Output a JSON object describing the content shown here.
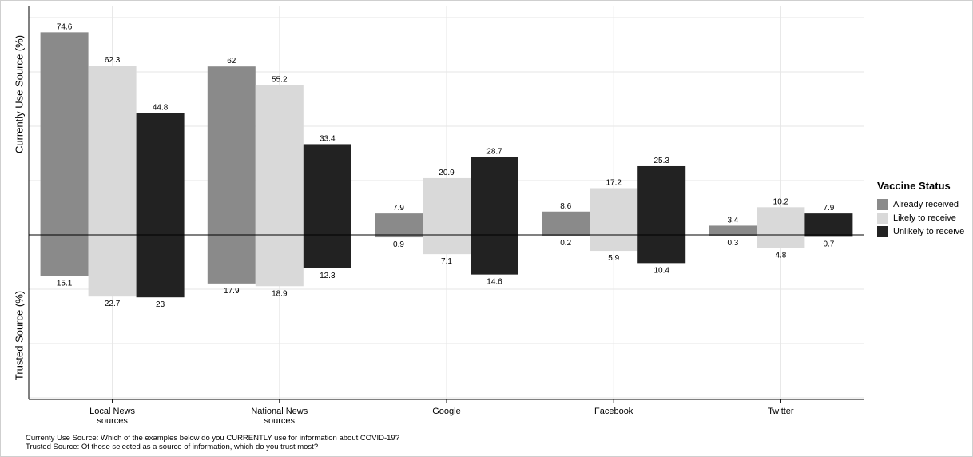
{
  "chart_data": {
    "type": "bar",
    "categories": [
      "Local News sources",
      "National News sources",
      "Google",
      "Facebook",
      "Twitter"
    ],
    "category_labels": [
      [
        "Local News",
        "sources"
      ],
      [
        "National News",
        "sources"
      ],
      [
        "Google"
      ],
      [
        "Facebook"
      ],
      [
        "Twitter"
      ]
    ],
    "series": [
      {
        "name": "Already received",
        "color": "#8a8a8a",
        "current": [
          74.6,
          62,
          7.9,
          8.6,
          3.4
        ],
        "current_labels": [
          "74.6",
          "62",
          "7.9",
          "8.6",
          "3.4"
        ],
        "trusted": [
          15.1,
          17.9,
          0.9,
          0.2,
          0.3
        ],
        "trusted_labels": [
          "15.1",
          "17.9",
          "0.9",
          "0.2",
          "0.3"
        ]
      },
      {
        "name": "Likely to receive",
        "color": "#d9d9d9",
        "current": [
          62.3,
          55.2,
          20.9,
          17.2,
          10.2
        ],
        "current_labels": [
          "62.3",
          "55.2",
          "20.9",
          "17.2",
          "10.2"
        ],
        "trusted": [
          22.7,
          18.9,
          7.1,
          5.9,
          4.8
        ],
        "trusted_labels": [
          "22.7",
          "18.9",
          "7.1",
          "5.9",
          "4.8"
        ]
      },
      {
        "name": "Unlikely to receive",
        "color": "#222222",
        "current": [
          44.8,
          33.4,
          28.7,
          25.3,
          7.9
        ],
        "current_labels": [
          "44.8",
          "33.4",
          "28.7",
          "25.3",
          "7.9"
        ],
        "trusted": [
          23,
          12.3,
          14.6,
          10.4,
          0.7
        ],
        "trusted_labels": [
          "23",
          "12.3",
          "14.6",
          "10.4",
          "0.7"
        ]
      }
    ],
    "ylabel_top": "Currently Use Source (%)",
    "ylabel_bottom": "Trusted Source (%)",
    "ylim": [
      -60,
      85
    ],
    "grid": true,
    "legend_title": "Vaccine Status",
    "legend_position": "right"
  },
  "footnotes": [
    "Currenty Use Source: Which of the examples below do you CURRENTLY use for information about COVID-19?",
    "Trusted Source: Of those selected as a source of information, which do you trust most?"
  ]
}
